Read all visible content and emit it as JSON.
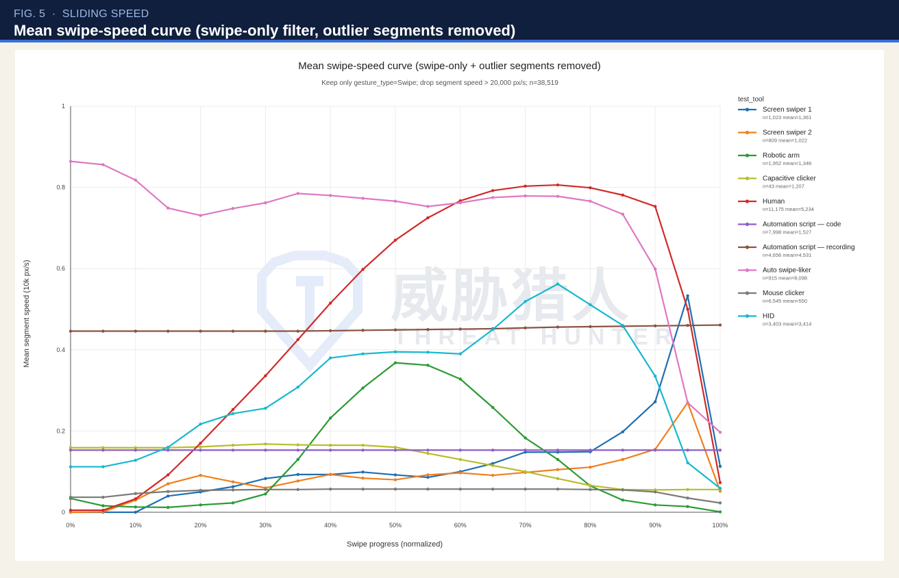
{
  "header": {
    "fig_number": "FIG. 5",
    "separator": "·",
    "section": "SLIDING SPEED",
    "title": "Mean swipe-speed curve (swipe-only filter, outlier segments removed)"
  },
  "watermark": {
    "cn": "威胁猎人",
    "en": "THREAT HUNTER"
  },
  "colors": {
    "header_bg": "#0f1f3d",
    "accent": "#3a6fd8",
    "page_bg": "#f5f2ea"
  },
  "chart_data": {
    "type": "line",
    "title": "Mean swipe-speed curve (swipe-only + outlier segments removed)",
    "subtitle": "Keep only gesture_type=Swipe; drop segment speed > 20,000 px/s; n=38,519",
    "xlabel": "Swipe progress (normalized)",
    "ylabel": "Mean segment speed (10k px/s)",
    "x": [
      0,
      5,
      10,
      15,
      20,
      25,
      30,
      35,
      40,
      45,
      50,
      55,
      60,
      65,
      70,
      75,
      80,
      85,
      90,
      95,
      100
    ],
    "x_ticks": [
      "0%",
      "10%",
      "20%",
      "30%",
      "40%",
      "50%",
      "60%",
      "70%",
      "80%",
      "90%",
      "100%"
    ],
    "x_tick_values": [
      0,
      10,
      20,
      30,
      40,
      50,
      60,
      70,
      80,
      90,
      100
    ],
    "xlim": [
      0,
      100
    ],
    "y_ticks": [
      "0",
      "0.2",
      "0.4",
      "0.6",
      "0.8",
      "1"
    ],
    "y_tick_values": [
      0,
      0.2,
      0.4,
      0.6,
      0.8,
      1.0
    ],
    "ylim": [
      0,
      1
    ],
    "grid": true,
    "legend_title": "test_tool",
    "legend_position": "right",
    "series": [
      {
        "name": "Screen swiper 1",
        "stats": "n=1,023  mean=1,361",
        "color": "#1f6fb0",
        "values": [
          0.0,
          0.0,
          0.0,
          0.04,
          0.05,
          0.063,
          0.083,
          0.093,
          0.093,
          0.099,
          0.092,
          0.086,
          0.1,
          0.12,
          0.148,
          0.148,
          0.149,
          0.198,
          0.272,
          0.533,
          0.113
        ]
      },
      {
        "name": "Screen swiper 2",
        "stats": "n=809  mean=1,022",
        "color": "#f07f1c",
        "values": [
          0.0,
          0.001,
          0.03,
          0.07,
          0.091,
          0.075,
          0.06,
          0.077,
          0.093,
          0.084,
          0.08,
          0.092,
          0.097,
          0.091,
          0.098,
          0.105,
          0.111,
          0.13,
          0.155,
          0.27,
          0.052
        ]
      },
      {
        "name": "Robotic arm",
        "stats": "n=1,952  mean=1,346",
        "color": "#2a9a35",
        "values": [
          0.034,
          0.016,
          0.013,
          0.012,
          0.018,
          0.023,
          0.045,
          0.13,
          0.232,
          0.306,
          0.368,
          0.362,
          0.328,
          0.258,
          0.183,
          0.13,
          0.065,
          0.03,
          0.018,
          0.014,
          0.001
        ]
      },
      {
        "name": "Capacitive clicker",
        "stats": "n=43  mean=1,207",
        "color": "#b8bc2e",
        "values": [
          0.159,
          0.159,
          0.159,
          0.159,
          0.161,
          0.165,
          0.168,
          0.166,
          0.165,
          0.165,
          0.16,
          0.145,
          0.13,
          0.115,
          0.1,
          0.083,
          0.066,
          0.056,
          0.055,
          0.056,
          0.056
        ]
      },
      {
        "name": "Human",
        "stats": "n=11,175  mean=5,234",
        "color": "#d02a28",
        "values": [
          0.005,
          0.005,
          0.033,
          0.092,
          0.17,
          0.253,
          0.336,
          0.425,
          0.515,
          0.598,
          0.67,
          0.725,
          0.767,
          0.792,
          0.803,
          0.806,
          0.799,
          0.781,
          0.753,
          0.5,
          0.073
        ]
      },
      {
        "name": "Automation script — code",
        "stats": "n=7,998  mean=1,527",
        "color": "#8e5ec8",
        "values": [
          0.153,
          0.153,
          0.153,
          0.153,
          0.153,
          0.153,
          0.153,
          0.153,
          0.153,
          0.153,
          0.153,
          0.153,
          0.153,
          0.153,
          0.153,
          0.153,
          0.153,
          0.153,
          0.153,
          0.153,
          0.153
        ]
      },
      {
        "name": "Automation script — recording",
        "stats": "n=4,656  mean=4,531",
        "color": "#8a5342",
        "values": [
          0.446,
          0.446,
          0.446,
          0.446,
          0.446,
          0.446,
          0.446,
          0.446,
          0.447,
          0.448,
          0.449,
          0.45,
          0.451,
          0.452,
          0.454,
          0.456,
          0.457,
          0.458,
          0.459,
          0.46,
          0.461
        ]
      },
      {
        "name": "Auto swipe-liker",
        "stats": "n=915  mean=8,098",
        "color": "#de77c4",
        "values": [
          0.864,
          0.856,
          0.818,
          0.749,
          0.731,
          0.748,
          0.762,
          0.785,
          0.78,
          0.773,
          0.766,
          0.753,
          0.762,
          0.775,
          0.779,
          0.778,
          0.766,
          0.734,
          0.599,
          0.27,
          0.197
        ]
      },
      {
        "name": "Mouse clicker",
        "stats": "n=6,545  mean=550",
        "color": "#7a7a7a",
        "values": [
          0.037,
          0.037,
          0.046,
          0.051,
          0.054,
          0.055,
          0.056,
          0.056,
          0.057,
          0.057,
          0.057,
          0.057,
          0.057,
          0.057,
          0.057,
          0.057,
          0.056,
          0.055,
          0.05,
          0.035,
          0.023
        ]
      },
      {
        "name": "HID",
        "stats": "n=3,403  mean=3,414",
        "color": "#17b8cf",
        "values": [
          0.112,
          0.112,
          0.128,
          0.16,
          0.217,
          0.243,
          0.256,
          0.308,
          0.38,
          0.39,
          0.395,
          0.394,
          0.39,
          0.45,
          0.519,
          0.562,
          0.511,
          0.46,
          0.335,
          0.122,
          0.059
        ]
      }
    ]
  }
}
